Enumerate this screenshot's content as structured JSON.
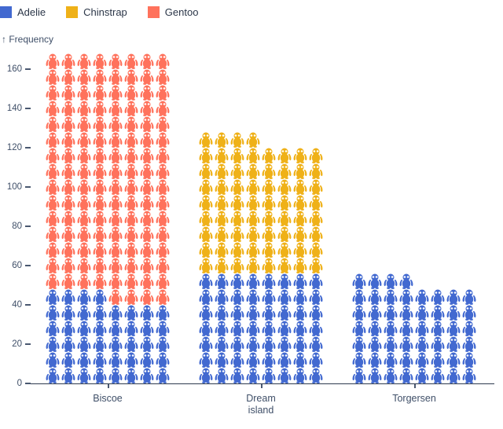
{
  "legend": {
    "items": [
      {
        "label": "Adelie",
        "color": "#4269d0"
      },
      {
        "label": "Chinstrap",
        "color": "#efb118"
      },
      {
        "label": "Gentoo",
        "color": "#ff725c"
      }
    ]
  },
  "y_axis": {
    "label": "↑ Frequency",
    "ticks": [
      0,
      20,
      40,
      60,
      80,
      100,
      120,
      140,
      160
    ]
  },
  "x_axis": {
    "labels": [
      [
        "Biscoe"
      ],
      [
        "Dream",
        "island"
      ],
      [
        "Torgersen"
      ]
    ]
  },
  "chart_data": {
    "type": "pictogram",
    "categories": [
      "Biscoe",
      "Dream island",
      "Torgersen"
    ],
    "series": [
      {
        "name": "Adelie",
        "color": "#4269d0",
        "values": [
          44,
          56,
          52
        ]
      },
      {
        "name": "Chinstrap",
        "color": "#efb118",
        "values": [
          0,
          68,
          0
        ]
      },
      {
        "name": "Gentoo",
        "color": "#ff725c",
        "values": [
          124,
          0,
          0
        ]
      }
    ],
    "totals": [
      168,
      124,
      52
    ],
    "unit_value": 1,
    "icons_per_row": 8,
    "icon": "penguin-icon",
    "ylabel": "Frequency",
    "ylim": [
      0,
      168
    ],
    "legend_position": "top-left",
    "grid": false,
    "stack_order_bottom_to_top": [
      "Adelie",
      "Chinstrap",
      "Gentoo"
    ]
  }
}
